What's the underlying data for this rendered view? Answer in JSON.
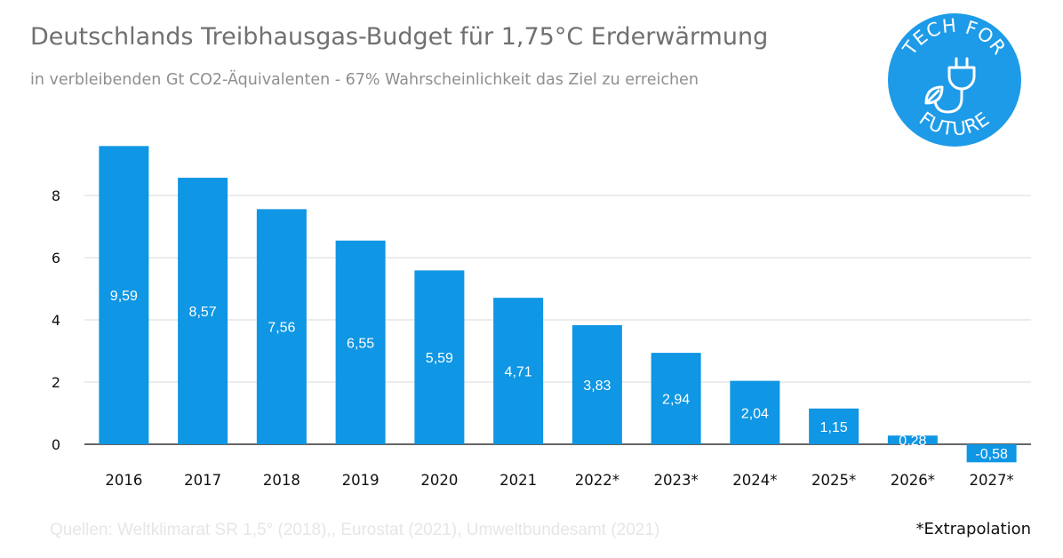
{
  "header": {
    "title": "Deutschlands Treibhausgas-Budget für 1,75°C Erderwärmung",
    "subtitle": "in verbleibenden Gt CO2-Äquivalenten - 67% Wahrscheinlichkeit das Ziel zu erreichen"
  },
  "logo": {
    "top_text": "TECH FOR",
    "bottom_text": "FUTURE",
    "icon": "plug-leaf-icon",
    "color": "#1e9be8"
  },
  "footer": {
    "source": "Quellen: Weltklimarat SR 1,5° (2018),, Eurostat (2021), Umweltbundesamt (2021)",
    "note": "*Extrapolation"
  },
  "chart_data": {
    "type": "bar",
    "categories": [
      "2016",
      "2017",
      "2018",
      "2019",
      "2020",
      "2021",
      "2022*",
      "2023*",
      "2024*",
      "2025*",
      "2026*",
      "2027*"
    ],
    "values": [
      9.59,
      8.57,
      7.56,
      6.55,
      5.59,
      4.71,
      3.83,
      2.94,
      2.04,
      1.15,
      0.28,
      -0.58
    ],
    "value_labels": [
      "9,59",
      "8,57",
      "7,56",
      "6,55",
      "5,59",
      "4,71",
      "3,83",
      "2,94",
      "2,04",
      "1,15",
      "0,28",
      "-0,58"
    ],
    "y_ticks": [
      "0",
      "2",
      "4",
      "6",
      "8"
    ],
    "y_tick_values": [
      0,
      2,
      4,
      6,
      8
    ],
    "ylim": [
      -0.6,
      10.2
    ],
    "grid": true,
    "bar_color": "#0f96e4",
    "grid_color": "#d9d9d9",
    "axis_color": "#333333",
    "xlabel": "",
    "ylabel": ""
  }
}
